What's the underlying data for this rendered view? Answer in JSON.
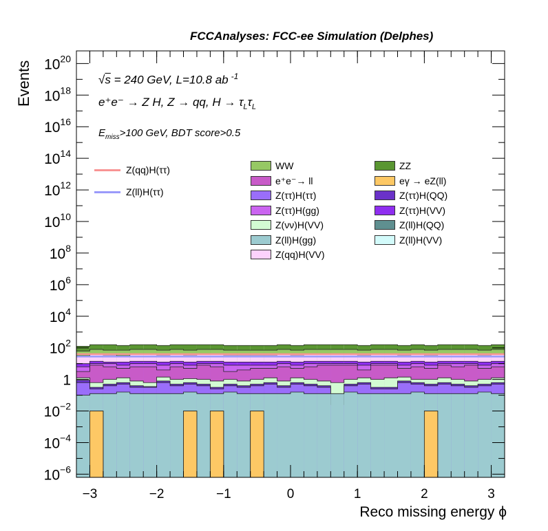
{
  "chart_data": {
    "type": "histogram-stacked",
    "title": "FCCAnalyses: FCC-ee Simulation (Delphes)",
    "xlabel": "Reco missing energy ϕ",
    "ylabel": "Events",
    "xlim": [
      -3.2,
      3.2
    ],
    "ylim_log10": [
      -6.2,
      20.8
    ],
    "log_y": true,
    "x_ticks": [
      -3,
      -2,
      -1,
      0,
      1,
      2,
      3
    ],
    "x_tick_labels": [
      "−3",
      "−2",
      "−1",
      "0",
      "1",
      "2",
      "3"
    ],
    "y_ticks_log10": [
      -6,
      -4,
      -2,
      0,
      2,
      4,
      6,
      8,
      10,
      12,
      14,
      16,
      18,
      20
    ],
    "y_tick_labels": [
      {
        "base": "10",
        "exp": "−6"
      },
      {
        "base": "10",
        "exp": "−4"
      },
      {
        "base": "10",
        "exp": "−2"
      },
      {
        "base": "1",
        "exp": ""
      },
      {
        "base": "10",
        "exp": "2"
      },
      {
        "base": "10",
        "exp": "4"
      },
      {
        "base": "10",
        "exp": "6"
      },
      {
        "base": "10",
        "exp": "8"
      },
      {
        "base": "10",
        "exp": "10"
      },
      {
        "base": "10",
        "exp": "12"
      },
      {
        "base": "10",
        "exp": "14"
      },
      {
        "base": "10",
        "exp": "16"
      },
      {
        "base": "10",
        "exp": "18"
      },
      {
        "base": "10",
        "exp": "20"
      }
    ],
    "bin_edges": [
      -3.2,
      -3.0,
      -2.8,
      -2.6,
      -2.4,
      -2.2,
      -2.0,
      -1.8,
      -1.6,
      -1.4,
      -1.2,
      -1.0,
      -0.8,
      -0.6,
      -0.4,
      -0.2,
      0.0,
      0.2,
      0.4,
      0.6,
      0.8,
      1.0,
      1.2,
      1.4,
      1.6,
      1.8,
      2.0,
      2.2,
      2.4,
      2.6,
      2.8,
      3.0,
      3.2
    ],
    "stack_bottom_log10": -6.2,
    "stack_tops_log10": [
      {
        "name": "eγ → eZ(ll)",
        "color": "#fdc865",
        "values": [
          -6.2,
          -2,
          -6.2,
          -6.2,
          -6.2,
          -6.2,
          -6.2,
          -6.2,
          -2,
          -6.2,
          -2,
          -6.2,
          -6.2,
          -2,
          -6.2,
          -6.2,
          -6.2,
          -6.2,
          -6.2,
          -6.2,
          -6.2,
          -6.2,
          -6.2,
          -6.2,
          -6.2,
          -6.2,
          -2,
          -6.2,
          -6.2,
          -6.2,
          -6.2,
          -6.2
        ]
      },
      {
        "name": "Z(ll)H(gg)",
        "color": "#9ccbd0",
        "values": [
          -1.0,
          -0.9,
          -0.9,
          -0.8,
          -0.9,
          -0.9,
          -0.9,
          -0.9,
          -0.8,
          -0.9,
          -0.9,
          -0.8,
          -0.9,
          -0.9,
          -0.9,
          -0.9,
          -0.8,
          -0.9,
          -0.9,
          -0.9,
          -0.8,
          -0.9,
          -0.9,
          -0.9,
          -0.9,
          -0.8,
          -0.9,
          -0.9,
          -0.9,
          -0.9,
          -0.8,
          -0.9
        ]
      },
      {
        "name": "Z(ττ)H(ττ)",
        "color": "#9a6efa",
        "values": [
          -0.2,
          -0.6,
          -0.4,
          -0.3,
          -0.5,
          -0.5,
          -0.2,
          -0.4,
          -0.3,
          -0.4,
          -0.6,
          -0.4,
          -0.5,
          -0.4,
          -0.3,
          -0.5,
          -0.3,
          -0.4,
          -0.5,
          -1.6,
          -0.4,
          -0.3,
          -0.6,
          -0.6,
          -0.2,
          -0.3,
          -0.4,
          -0.3,
          -0.4,
          -0.5,
          -0.4,
          -0.3
        ]
      },
      {
        "name": "Z(ττ)H(QQ)",
        "color": "#6a32c8",
        "values": [
          -0.05,
          -0.5,
          -0.3,
          -0.2,
          -0.4,
          -0.45,
          -0.1,
          -0.3,
          -0.2,
          -0.3,
          -0.5,
          -0.3,
          -0.4,
          -0.3,
          -0.2,
          -0.4,
          -0.2,
          -0.3,
          -0.4,
          -1.3,
          -0.3,
          -0.2,
          -0.5,
          -0.5,
          -0.1,
          -0.2,
          -0.3,
          -0.2,
          -0.3,
          -0.4,
          -0.3,
          -0.2
        ]
      },
      {
        "name": "Z(νν)H(VV)",
        "color": "#d3fbd3",
        "values": [
          0.1,
          -0.2,
          0.0,
          0.1,
          -0.1,
          -0.2,
          0.15,
          0.0,
          0.05,
          0.0,
          -0.1,
          0.0,
          -0.1,
          0.0,
          0.1,
          -0.1,
          0.1,
          0.0,
          -0.1,
          -0.2,
          0.0,
          0.1,
          0.0,
          0.1,
          0.15,
          0.0,
          0.0,
          0.1,
          0.0,
          -0.1,
          0.0,
          0.1
        ]
      },
      {
        "name": "e⁺e⁻→ ll",
        "color": "#c85bc8",
        "values": [
          0.5,
          0.9,
          0.8,
          0.7,
          0.8,
          0.8,
          0.6,
          0.8,
          0.7,
          0.9,
          0.8,
          0.5,
          0.6,
          0.7,
          0.7,
          0.8,
          0.7,
          0.8,
          0.9,
          0.9,
          0.9,
          0.6,
          0.9,
          0.9,
          0.7,
          0.8,
          0.7,
          0.9,
          0.8,
          0.9,
          0.7,
          0.8
        ]
      },
      {
        "name": "Z(ττ)H(gg)",
        "color": "#ca64f0",
        "values": [
          0.8,
          1.0,
          1.0,
          0.9,
          1.0,
          1.0,
          0.9,
          1.0,
          0.9,
          1.0,
          1.0,
          0.9,
          0.9,
          0.9,
          0.9,
          1.0,
          0.9,
          1.0,
          1.0,
          1.0,
          1.0,
          0.9,
          1.0,
          1.0,
          0.9,
          1.0,
          0.9,
          1.0,
          1.0,
          1.0,
          0.9,
          1.0
        ]
      },
      {
        "name": "Z(ττ)H(VV)",
        "color": "#8f2ef0",
        "values": [
          1.0,
          1.15,
          1.1,
          1.1,
          1.15,
          1.15,
          1.1,
          1.15,
          1.1,
          1.15,
          1.15,
          1.1,
          1.1,
          1.1,
          1.1,
          1.15,
          1.1,
          1.15,
          1.15,
          1.15,
          1.15,
          1.1,
          1.15,
          1.15,
          1.1,
          1.15,
          1.1,
          1.15,
          1.15,
          1.15,
          1.1,
          1.15
        ]
      },
      {
        "name": "Z(qq)H(VV)",
        "color": "#fdd2fd",
        "values": [
          1.5,
          1.6,
          1.55,
          1.5,
          1.6,
          1.6,
          1.55,
          1.6,
          1.55,
          1.6,
          1.6,
          1.55,
          1.55,
          1.55,
          1.55,
          1.6,
          1.55,
          1.6,
          1.6,
          1.6,
          1.6,
          1.55,
          1.6,
          1.6,
          1.55,
          1.6,
          1.55,
          1.6,
          1.6,
          1.6,
          1.55,
          1.6
        ]
      },
      {
        "name": "WW",
        "color": "#96c864",
        "values": [
          1.8,
          1.9,
          1.85,
          1.85,
          1.9,
          1.9,
          1.85,
          1.9,
          1.85,
          1.9,
          1.9,
          1.85,
          1.85,
          1.85,
          1.85,
          1.9,
          1.85,
          1.9,
          1.9,
          1.9,
          1.9,
          1.85,
          1.9,
          1.9,
          1.85,
          1.9,
          1.85,
          1.9,
          1.9,
          1.9,
          1.85,
          1.9
        ]
      },
      {
        "name": "ZZ",
        "color": "#5a9632",
        "values": [
          2.1,
          2.2,
          2.2,
          2.15,
          2.2,
          2.2,
          2.15,
          2.2,
          2.2,
          2.2,
          2.2,
          2.15,
          2.15,
          2.15,
          2.15,
          2.2,
          2.15,
          2.2,
          2.2,
          2.2,
          2.2,
          2.15,
          2.2,
          2.2,
          2.15,
          2.2,
          2.15,
          2.2,
          2.2,
          2.2,
          2.15,
          2.2
        ]
      }
    ],
    "signal_lines": [
      {
        "name": "Z(qq)H(ττ)",
        "color": "#f89494",
        "values_log10": [
          1.6,
          1.6,
          1.6,
          1.6,
          1.6,
          1.6,
          1.6,
          1.6,
          1.6,
          1.6,
          1.6,
          1.6,
          1.6,
          1.6,
          1.6,
          1.6,
          1.6,
          1.6,
          1.6,
          1.6,
          1.6,
          1.6,
          1.6,
          1.6,
          1.6,
          1.6,
          1.6,
          1.6,
          1.6,
          1.6,
          1.6,
          1.6
        ]
      },
      {
        "name": "Z(ll)H(ττ)",
        "color": "#9a9afa",
        "values_log10": [
          1.45,
          1.45,
          1.45,
          1.45,
          1.45,
          1.45,
          1.45,
          1.45,
          1.45,
          1.45,
          1.45,
          1.45,
          1.45,
          1.45,
          1.45,
          1.45,
          1.45,
          1.45,
          1.45,
          1.45,
          1.45,
          1.45,
          1.45,
          1.45,
          1.45,
          1.45,
          1.45,
          1.45,
          1.45,
          1.45,
          1.45,
          1.45
        ]
      }
    ],
    "annotations": {
      "line1_sqrt": "√",
      "line1_s": "s",
      "line1_rest": " = 240 GeV, L=10.8 ab",
      "line1_sup": "-1",
      "line2": "e⁺e⁻ → Z H, Z  → qq, H  →  τ",
      "line2_sub1": "L",
      "line2_tau2": "τ",
      "line2_sub2": "L",
      "line3_E": "E",
      "line3_sub": "miss",
      "line3_rest": ">100 GeV, BDT score>0.5"
    },
    "legend": {
      "lines": [
        "Z(qq)H(ττ)",
        "Z(ll)H(ττ)"
      ],
      "col1": [
        "WW",
        "e⁺e⁻→ ll",
        "Z(ττ)H(ττ)",
        "Z(ττ)H(gg)",
        "Z(νν)H(VV)",
        "Z(ll)H(gg)",
        "Z(qq)H(VV)"
      ],
      "col1_colors": [
        "#96c864",
        "#c85bc8",
        "#9a6efa",
        "#ca64f0",
        "#d3fbd3",
        "#9ccbd0",
        "#fdd2fd"
      ],
      "col2": [
        "ZZ",
        "eγ → eZ(ll)",
        "Z(ττ)H(QQ)",
        "Z(ττ)H(VV)",
        "Z(ll)H(QQ)",
        "Z(ll)H(VV)"
      ],
      "col2_colors": [
        "#5a9632",
        "#fdc865",
        "#6a32c8",
        "#8f2ef0",
        "#5f8f90",
        "#d3fbfb"
      ]
    }
  }
}
